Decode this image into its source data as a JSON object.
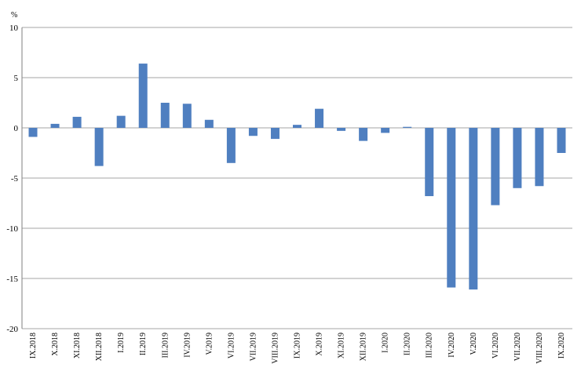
{
  "chart_data": {
    "type": "bar",
    "ylabel": "%",
    "ylim": [
      -20,
      10
    ],
    "yticks": [
      "10",
      "5",
      "0",
      "-5",
      "-10",
      "-15",
      "-20"
    ],
    "grid": "horizontal",
    "legend": "none",
    "colors": {
      "bar": "#4f7fc0",
      "grid": "#a6a6a6",
      "axis": "#7f7f7f"
    },
    "categories": [
      "IX.2018",
      "X.2018",
      "XI.2018",
      "XII.2018",
      "I.2019",
      "II.2019",
      "III.2019",
      "IV.2019",
      "V.2019",
      "VI.2019",
      "VII.2019",
      "VIII.2019",
      "IX.2019",
      "X.2019",
      "XI.2019",
      "XII.2019",
      "I.2020",
      "II.2020",
      "III.2020",
      "IV.2020",
      "V.2020",
      "VI.2020",
      "VII.2020",
      "VIII.2020",
      "IX.2020"
    ],
    "values": [
      -0.9,
      0.4,
      1.1,
      -3.8,
      1.2,
      6.4,
      2.5,
      2.4,
      0.8,
      -3.5,
      -0.8,
      -1.1,
      0.3,
      1.9,
      -0.3,
      -1.3,
      -0.5,
      0.1,
      -6.8,
      -15.9,
      -16.1,
      -7.7,
      -6.0,
      -5.8,
      -2.5
    ]
  }
}
